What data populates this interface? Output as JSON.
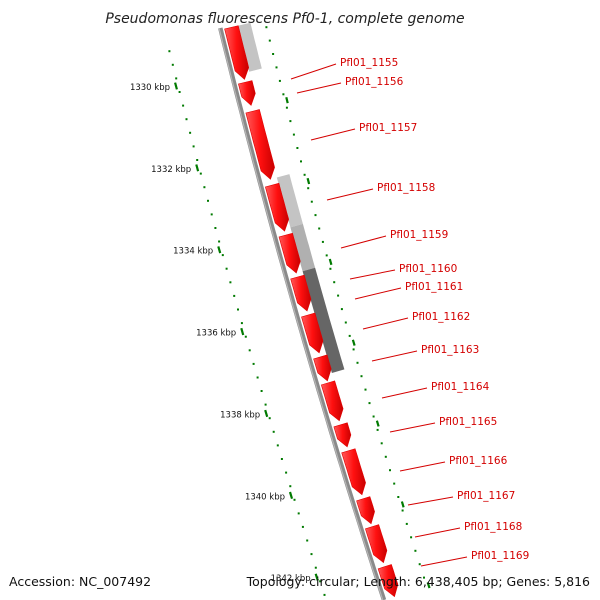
{
  "title": "Pseudomonas fluorescens Pf0-1, complete genome",
  "accession": "Accession: NC_007492",
  "summary": "Topology: circular; Length: 6,438,405 bp; Genes: 5,816",
  "colors": {
    "backbone": "#8a8a8a",
    "gene_forward": "#ff1a1a",
    "gene_dark": "#d80000",
    "gene_reverse_light": "#c4c4c4",
    "gene_reverse_dark": "#666666",
    "ticks": "#007a00",
    "label": "#d40000"
  },
  "ticks": [
    {
      "kbp": 1330,
      "label": "1330 kbp"
    },
    {
      "kbp": 1332,
      "label": "1332 kbp"
    },
    {
      "kbp": 1334,
      "label": "1334 kbp"
    },
    {
      "kbp": 1336,
      "label": "1336 kbp"
    },
    {
      "kbp": 1338,
      "label": "1338 kbp"
    },
    {
      "kbp": 1340,
      "label": "1340 kbp"
    },
    {
      "kbp": 1342,
      "label": "1342 kbp"
    }
  ],
  "genes": [
    {
      "id": "Pfl01_1155"
    },
    {
      "id": "Pfl01_1156"
    },
    {
      "id": "Pfl01_1157"
    },
    {
      "id": "Pfl01_1158"
    },
    {
      "id": "Pfl01_1159"
    },
    {
      "id": "Pfl01_1160"
    },
    {
      "id": "Pfl01_1161"
    },
    {
      "id": "Pfl01_1162"
    },
    {
      "id": "Pfl01_1163"
    },
    {
      "id": "Pfl01_1164"
    },
    {
      "id": "Pfl01_1165"
    },
    {
      "id": "Pfl01_1166"
    },
    {
      "id": "Pfl01_1167"
    },
    {
      "id": "Pfl01_1168"
    },
    {
      "id": "Pfl01_1169"
    }
  ]
}
